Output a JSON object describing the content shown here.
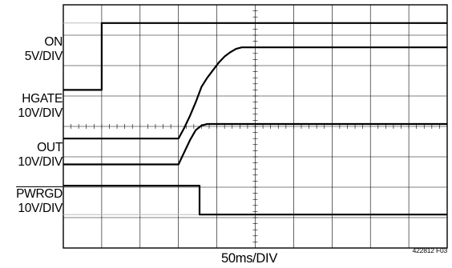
{
  "chart_data": {
    "type": "line",
    "xlabel": "50ms/DIV",
    "figure_id": "422812 F03",
    "divisions": {
      "x": 10,
      "y": 8
    },
    "grid": true,
    "channels": [
      {
        "key": "on",
        "label": "ON",
        "scale": "5V/DIV",
        "overline": false
      },
      {
        "key": "hgate",
        "label": "HGATE",
        "scale": "10V/DIV",
        "overline": false
      },
      {
        "key": "out",
        "label": "OUT",
        "scale": "10V/DIV",
        "overline": false
      },
      {
        "key": "pwrgd",
        "label": "PWRGD",
        "scale": "10V/DIV",
        "overline": true
      }
    ],
    "traces": [
      {
        "name": "on",
        "points": [
          [
            0,
            5.2
          ],
          [
            1,
            5.2
          ],
          [
            1,
            7.4
          ],
          [
            10,
            7.4
          ]
        ]
      },
      {
        "name": "hgate",
        "points": [
          [
            0,
            3.6
          ],
          [
            3,
            3.6
          ],
          [
            3.15,
            3.95
          ],
          [
            3.3,
            4.35
          ],
          [
            3.45,
            4.8
          ],
          [
            3.6,
            5.3
          ],
          [
            3.75,
            5.6
          ],
          [
            3.9,
            5.85
          ],
          [
            4.05,
            6.1
          ],
          [
            4.2,
            6.3
          ],
          [
            4.35,
            6.44
          ],
          [
            4.5,
            6.55
          ],
          [
            4.65,
            6.6
          ],
          [
            10,
            6.6
          ]
        ]
      },
      {
        "name": "out",
        "points": [
          [
            0,
            2.75
          ],
          [
            3,
            2.75
          ],
          [
            3.15,
            3.15
          ],
          [
            3.3,
            3.55
          ],
          [
            3.45,
            3.88
          ],
          [
            3.6,
            4.03
          ],
          [
            3.75,
            4.08
          ],
          [
            10,
            4.08
          ]
        ]
      },
      {
        "name": "pwrgd",
        "points": [
          [
            0,
            2.05
          ],
          [
            3.55,
            2.05
          ],
          [
            3.55,
            1.1
          ],
          [
            10,
            1.1
          ]
        ]
      }
    ]
  }
}
